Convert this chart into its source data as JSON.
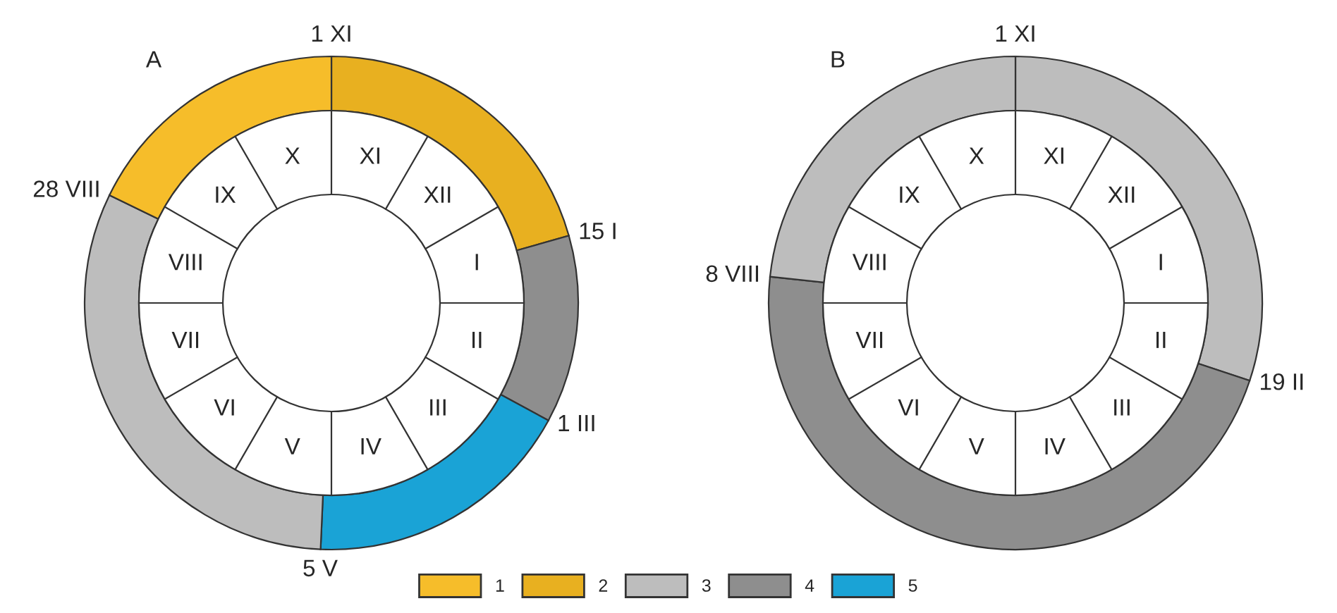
{
  "chart_data": [
    {
      "type": "donut",
      "title": "A",
      "categories": [
        "2",
        "4",
        "5",
        "3",
        "1"
      ],
      "values": [
        20.6,
        12.3,
        17.8,
        31.5,
        17.8
      ],
      "colors": [
        "#e8b020",
        "#8e8e8e",
        "#1aa3d6",
        "#bdbdbd",
        "#f6bd2a"
      ],
      "annotations": [
        "1 XI",
        "15 I",
        "1 III",
        "5 V",
        "28 VIII",
        "XI",
        "XII",
        "I",
        "II",
        "III",
        "IV",
        "V",
        "VI",
        "VII",
        "VIII",
        "IX",
        "X"
      ],
      "legend": "bottom"
    },
    {
      "type": "donut",
      "title": "B",
      "categories": [
        null,
        null,
        null
      ],
      "values": [
        30.1,
        46.6,
        23.3
      ],
      "colors": [
        "#bdbdbd",
        "#8e8e8e",
        "#bdbdbd"
      ],
      "annotations": [
        "1 XI",
        "19 II",
        "8 VIII",
        "XI",
        "XII",
        "I",
        "II",
        "III",
        "IV",
        "V",
        "VI",
        "VII",
        "VIII",
        "IX",
        "X"
      ]
    }
  ]
}
